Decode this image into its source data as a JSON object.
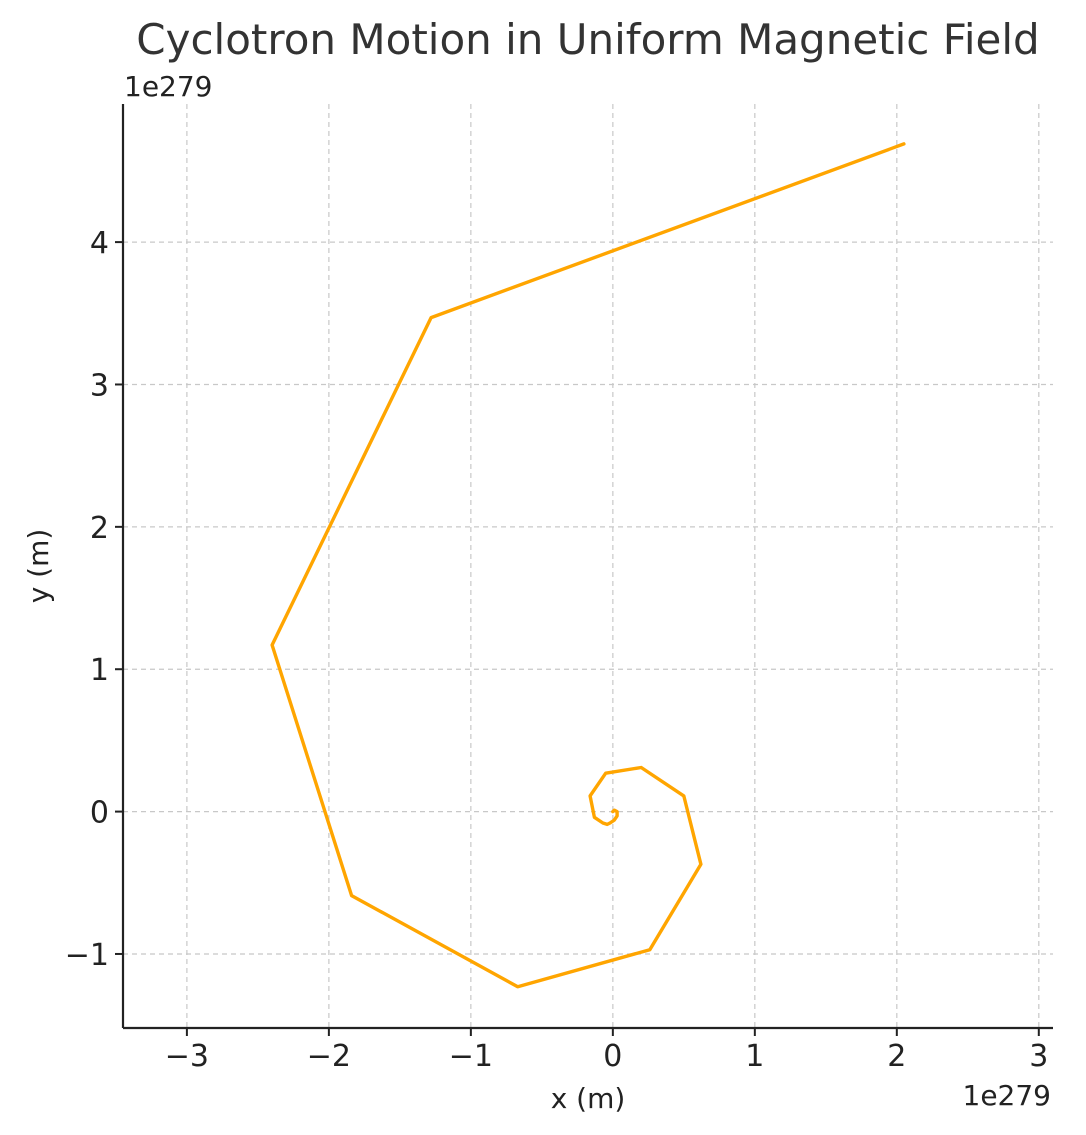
{
  "chart_data": {
    "type": "line",
    "title": "Cyclotron Motion in Uniform Magnetic Field",
    "xlabel": "x (m)",
    "ylabel": "y (m)",
    "x_offset_label": "1e279",
    "y_offset_label": "1e279",
    "xlim": [
      -3.45,
      3.1
    ],
    "ylim": [
      -1.52,
      4.97
    ],
    "x_ticks": [
      -3,
      -2,
      -1,
      0,
      1,
      2,
      3
    ],
    "x_tick_labels": [
      "−3",
      "−2",
      "−1",
      "0",
      "1",
      "2",
      "3"
    ],
    "y_ticks": [
      -1,
      0,
      1,
      2,
      3,
      4
    ],
    "y_tick_labels": [
      "−1",
      "0",
      "1",
      "2",
      "3",
      "4"
    ],
    "grid": true,
    "series": [
      {
        "color": "#FFA500",
        "x": [
          0,
          0.01,
          0.03,
          0.03,
          0.01,
          -0.02,
          -0.04,
          -0.07,
          -0.13,
          -0.16,
          -0.05,
          0.2,
          0.5,
          0.62,
          0.26,
          -0.67,
          -1.84,
          -2.4,
          -1.28,
          2.05
        ],
        "y": [
          0,
          0.01,
          0.0,
          -0.03,
          -0.06,
          -0.08,
          -0.09,
          -0.08,
          -0.04,
          0.11,
          0.27,
          0.31,
          0.11,
          -0.37,
          -0.97,
          -1.23,
          -0.59,
          1.17,
          3.47,
          4.69
        ]
      }
    ]
  }
}
